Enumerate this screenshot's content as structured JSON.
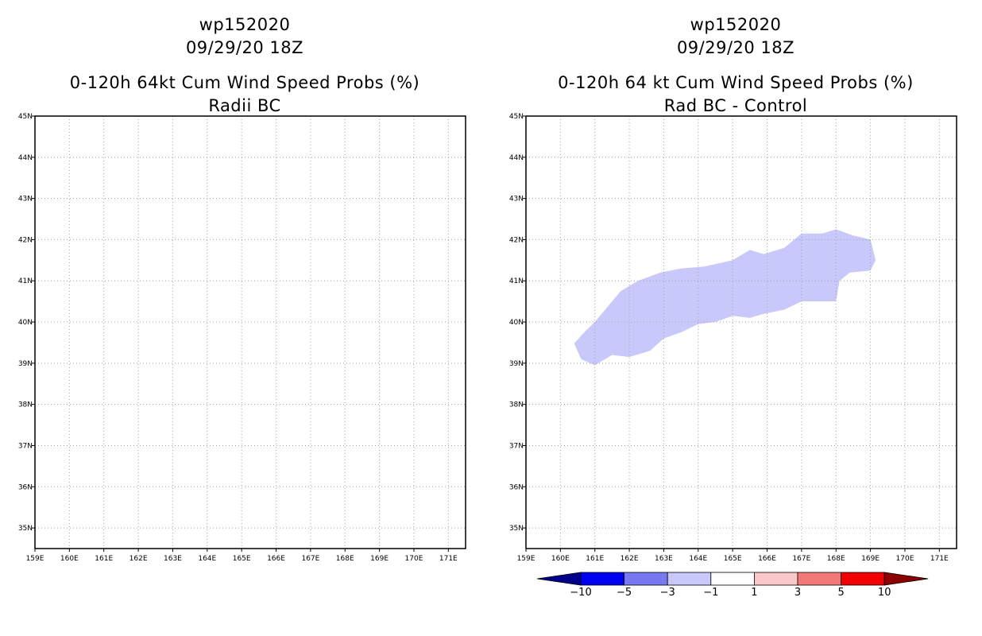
{
  "left_panel": {
    "storm": "wp152020",
    "datetime": "09/29/20 18Z",
    "product": "0-120h 64kt Cum Wind Speed Probs (%)",
    "subtitle": "Radii BC"
  },
  "right_panel": {
    "storm": "wp152020",
    "datetime": "09/29/20 18Z",
    "product": "0-120h 64 kt Cum Wind Speed Probs (%)",
    "subtitle": "Rad BC - Control"
  },
  "chart_data": [
    {
      "type": "heatmap",
      "panel": "left",
      "title": "Radii BC",
      "x_tick_labels": [
        "159E",
        "160E",
        "161E",
        "162E",
        "163E",
        "164E",
        "165E",
        "166E",
        "167E",
        "168E",
        "169E",
        "170E",
        "171E"
      ],
      "y_tick_labels": [
        "35N",
        "36N",
        "37N",
        "38N",
        "39N",
        "40N",
        "41N",
        "42N",
        "43N",
        "44N",
        "45N"
      ],
      "xlim": [
        159,
        171.5
      ],
      "ylim": [
        34.5,
        45
      ],
      "grid": true,
      "shaded_regions": []
    },
    {
      "type": "heatmap",
      "panel": "right",
      "title": "Rad BC - Control",
      "x_tick_labels": [
        "159E",
        "160E",
        "161E",
        "162E",
        "163E",
        "164E",
        "165E",
        "166E",
        "167E",
        "168E",
        "169E",
        "170E",
        "171E"
      ],
      "y_tick_labels": [
        "35N",
        "36N",
        "37N",
        "38N",
        "39N",
        "40N",
        "41N",
        "42N",
        "43N",
        "44N",
        "45N"
      ],
      "xlim": [
        159,
        171.5
      ],
      "ylim": [
        34.5,
        45
      ],
      "grid": true,
      "shaded_regions": [
        {
          "category": "-3 to -1",
          "color": "#c8c8fa",
          "polygon_lon_lat": [
            [
              160.4,
              39.48
            ],
            [
              160.75,
              39.8
            ],
            [
              161.0,
              40.0
            ],
            [
              161.4,
              40.4
            ],
            [
              161.75,
              40.75
            ],
            [
              162.25,
              41.0
            ],
            [
              162.9,
              41.2
            ],
            [
              163.5,
              41.3
            ],
            [
              164.2,
              41.35
            ],
            [
              165.0,
              41.5
            ],
            [
              165.5,
              41.75
            ],
            [
              165.9,
              41.65
            ],
            [
              166.5,
              41.8
            ],
            [
              167.0,
              42.15
            ],
            [
              167.6,
              42.15
            ],
            [
              168.0,
              42.25
            ],
            [
              168.5,
              42.1
            ],
            [
              169.0,
              42.0
            ],
            [
              169.15,
              41.5
            ],
            [
              169.0,
              41.25
            ],
            [
              168.4,
              41.2
            ],
            [
              168.1,
              41.0
            ],
            [
              168.0,
              40.5
            ],
            [
              167.5,
              40.5
            ],
            [
              167.0,
              40.5
            ],
            [
              166.5,
              40.3
            ],
            [
              165.9,
              40.2
            ],
            [
              165.5,
              40.1
            ],
            [
              165.0,
              40.15
            ],
            [
              164.5,
              40.0
            ],
            [
              164.0,
              39.95
            ],
            [
              163.5,
              39.75
            ],
            [
              163.0,
              39.6
            ],
            [
              162.6,
              39.3
            ],
            [
              162.0,
              39.15
            ],
            [
              161.5,
              39.2
            ],
            [
              161.0,
              38.95
            ],
            [
              160.6,
              39.1
            ],
            [
              160.4,
              39.48
            ]
          ]
        }
      ],
      "colorbar": {
        "labels": [
          "-10",
          "-5",
          "-3",
          "-1",
          "1",
          "3",
          "5",
          "10"
        ],
        "colors": [
          "#00008c",
          "#0000f0",
          "#7878f0",
          "#c8c8fa",
          "#ffffff",
          "#fac8c8",
          "#f07878",
          "#f00000",
          "#8c0000"
        ]
      }
    }
  ]
}
